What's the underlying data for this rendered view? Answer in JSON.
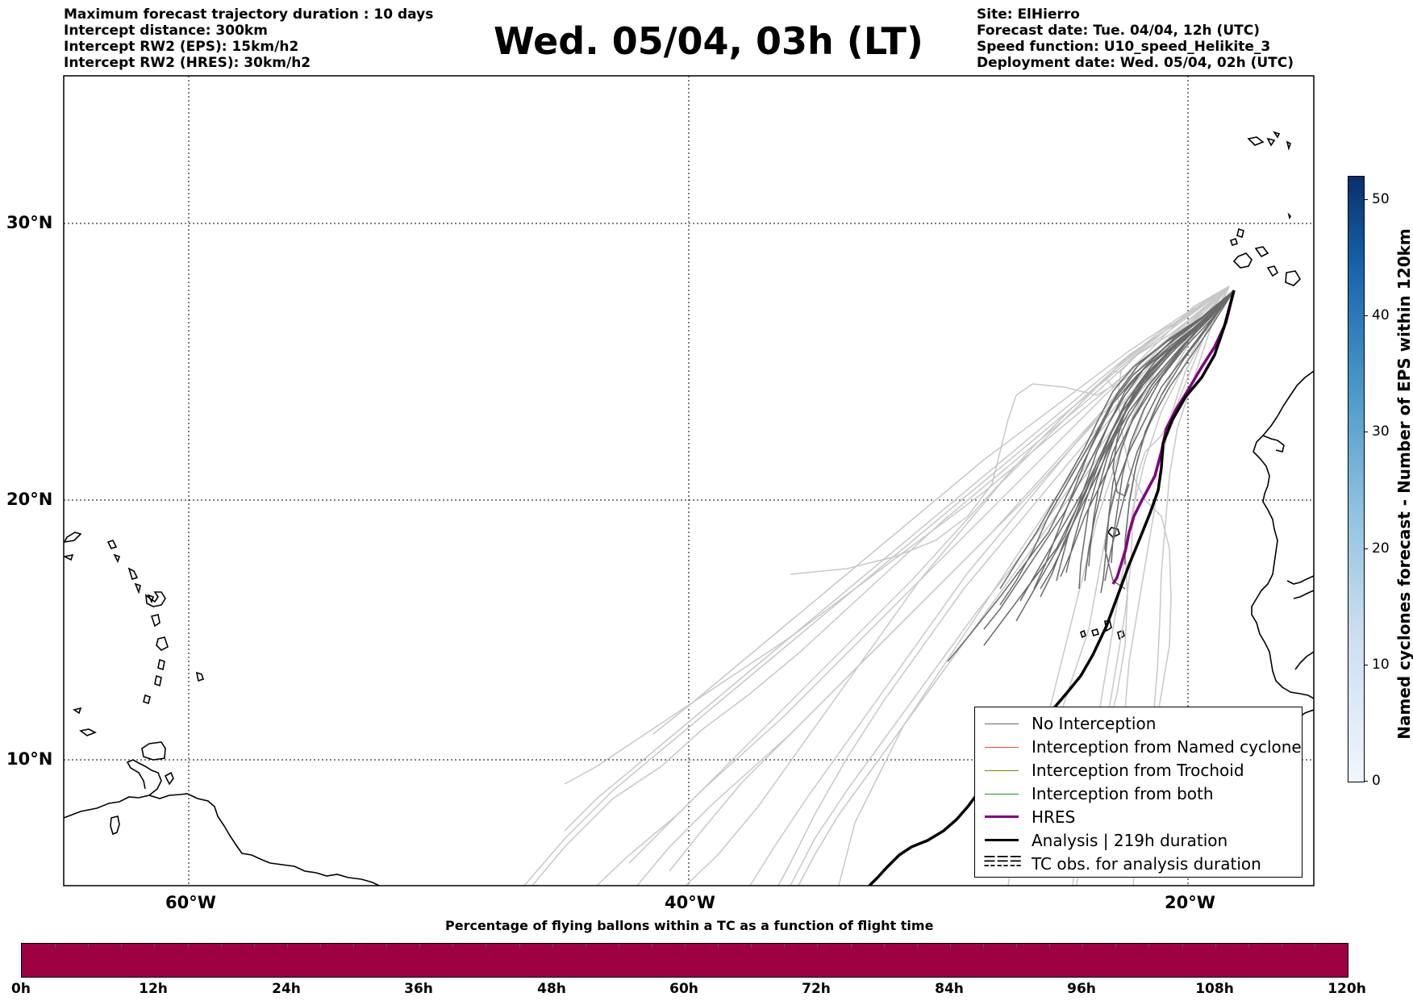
{
  "header_left": [
    "Maximum forecast trajectory duration : 10 days",
    "Intercept distance: 300km",
    "Intercept RW2 (EPS):  15km/h2",
    "Intercept RW2 (HRES): 30km/h2"
  ],
  "title": "Wed. 05/04, 03h (LT)",
  "header_right": [
    "Site: ElHierro",
    "Forecast date: Tue. 04/04, 12h (UTC)",
    "Speed function: U10_speed_Helikite_3",
    "Deployment date: Wed. 05/04, 02h (UTC)"
  ],
  "map": {
    "lat_labels": [
      "30°N",
      "20°N",
      "10°N"
    ],
    "lon_labels": [
      "60°W",
      "40°W",
      "20°W"
    ],
    "grid": "dotted"
  },
  "legend": {
    "items": [
      {
        "label": "No Interception",
        "color": "#666666"
      },
      {
        "label": "Interception from Named cyclone",
        "color": "#e8502a"
      },
      {
        "label": "Interception from Trochoid",
        "color": "#808000"
      },
      {
        "label": "Interception from both",
        "color": "#228b22"
      },
      {
        "label": "HRES",
        "color": "#8b008b"
      },
      {
        "label": "Analysis | 219h duration",
        "color": "#000000"
      },
      {
        "label": "TC obs. for analysis duration",
        "color": "#000000",
        "icon": "tc-symbol-icon"
      }
    ]
  },
  "colorbar_right": {
    "title": "Named cyclones forecast - Number of EPS within 120km",
    "ticks": [
      "0",
      "10",
      "20",
      "30",
      "40",
      "50"
    ],
    "range": [
      0,
      52
    ],
    "colormap": "Blues"
  },
  "colorbar_bottom": {
    "title": "Percentage of flying ballons within a TC as a function of flight time",
    "ticks": [
      "0h",
      "12h",
      "24h",
      "36h",
      "48h",
      "60h",
      "72h",
      "84h",
      "96h",
      "108h",
      "120h"
    ],
    "fill_color": "#9e0142"
  }
}
